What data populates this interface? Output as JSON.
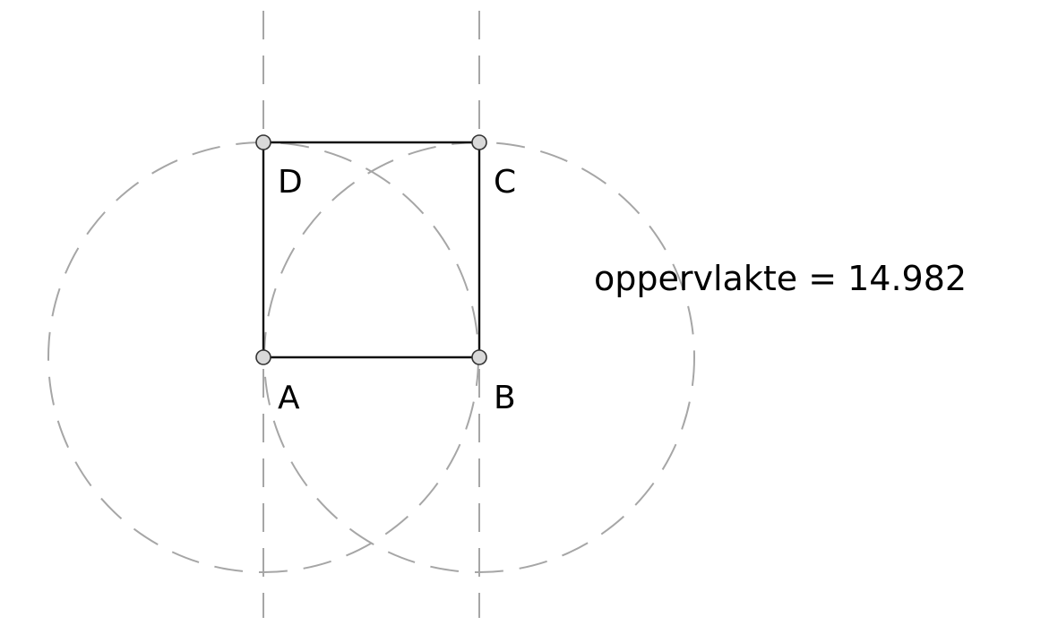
{
  "points": [
    {
      "id": "A",
      "label": "A"
    },
    {
      "id": "B",
      "label": "B"
    },
    {
      "id": "C",
      "label": "C"
    },
    {
      "id": "D",
      "label": "D"
    }
  ],
  "measurement": {
    "label": "oppervlakte",
    "separator": " = ",
    "value": "14.982",
    "text": "oppervlakte = 14.982"
  },
  "colors": {
    "edge": "#111111",
    "construction": "#a6a6a6",
    "vertex_fill": "#d9d9d9",
    "vertex_stroke": "#333333"
  }
}
